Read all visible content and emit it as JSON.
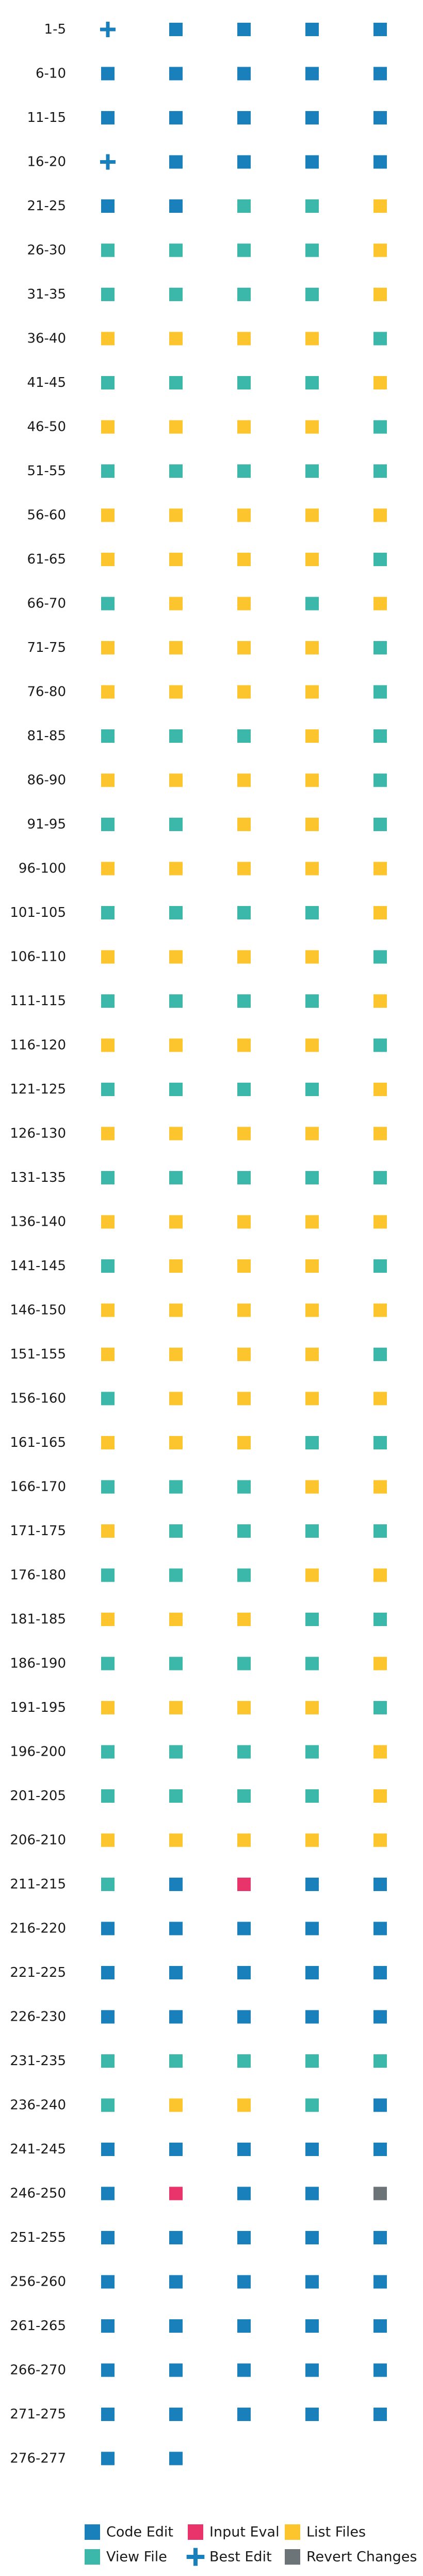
{
  "chart_data": {
    "type": "heatmap",
    "title": "",
    "xlabel": "",
    "ylabel": "",
    "grid": false,
    "legend_position": "bottom",
    "categories": {
      "CE": {
        "label": "Code Edit",
        "color": "#1a80bb",
        "marker": "square"
      },
      "VF": {
        "label": "View File",
        "color": "#3bb8a9",
        "marker": "square"
      },
      "IE": {
        "label": "Input Eval",
        "color": "#e8336b",
        "marker": "square"
      },
      "BE": {
        "label": "Best Edit",
        "color": "#1a80bb",
        "marker": "plus"
      },
      "LF": {
        "label": "List Files",
        "color": "#fcc42d",
        "marker": "square"
      },
      "RC": {
        "label": "Revert Changes",
        "color": "#6d7478",
        "marker": "square"
      }
    },
    "legend_order": [
      "CE",
      "VF",
      "IE",
      "BE",
      "LF",
      "RC"
    ],
    "rows": [
      {
        "label": "1-5",
        "cells": [
          "BE",
          "CE",
          "CE",
          "CE",
          "CE"
        ]
      },
      {
        "label": "6-10",
        "cells": [
          "CE",
          "CE",
          "CE",
          "CE",
          "CE"
        ]
      },
      {
        "label": "11-15",
        "cells": [
          "CE",
          "CE",
          "CE",
          "CE",
          "CE"
        ]
      },
      {
        "label": "16-20",
        "cells": [
          "BE",
          "CE",
          "CE",
          "CE",
          "CE"
        ]
      },
      {
        "label": "21-25",
        "cells": [
          "CE",
          "CE",
          "VF",
          "VF",
          "LF"
        ]
      },
      {
        "label": "26-30",
        "cells": [
          "VF",
          "VF",
          "VF",
          "VF",
          "LF"
        ]
      },
      {
        "label": "31-35",
        "cells": [
          "VF",
          "VF",
          "VF",
          "VF",
          "LF"
        ]
      },
      {
        "label": "36-40",
        "cells": [
          "LF",
          "LF",
          "LF",
          "LF",
          "VF"
        ]
      },
      {
        "label": "41-45",
        "cells": [
          "VF",
          "VF",
          "VF",
          "VF",
          "LF"
        ]
      },
      {
        "label": "46-50",
        "cells": [
          "LF",
          "LF",
          "LF",
          "LF",
          "VF"
        ]
      },
      {
        "label": "51-55",
        "cells": [
          "VF",
          "VF",
          "VF",
          "VF",
          "VF"
        ]
      },
      {
        "label": "56-60",
        "cells": [
          "LF",
          "LF",
          "LF",
          "LF",
          "LF"
        ]
      },
      {
        "label": "61-65",
        "cells": [
          "LF",
          "LF",
          "LF",
          "LF",
          "VF"
        ]
      },
      {
        "label": "66-70",
        "cells": [
          "VF",
          "LF",
          "LF",
          "VF",
          "LF"
        ]
      },
      {
        "label": "71-75",
        "cells": [
          "LF",
          "LF",
          "LF",
          "LF",
          "VF"
        ]
      },
      {
        "label": "76-80",
        "cells": [
          "LF",
          "LF",
          "LF",
          "LF",
          "VF"
        ]
      },
      {
        "label": "81-85",
        "cells": [
          "VF",
          "VF",
          "VF",
          "LF",
          "VF"
        ]
      },
      {
        "label": "86-90",
        "cells": [
          "LF",
          "LF",
          "LF",
          "LF",
          "VF"
        ]
      },
      {
        "label": "91-95",
        "cells": [
          "VF",
          "VF",
          "LF",
          "LF",
          "VF"
        ]
      },
      {
        "label": "96-100",
        "cells": [
          "LF",
          "LF",
          "LF",
          "LF",
          "LF"
        ]
      },
      {
        "label": "101-105",
        "cells": [
          "VF",
          "VF",
          "VF",
          "VF",
          "LF"
        ]
      },
      {
        "label": "106-110",
        "cells": [
          "LF",
          "LF",
          "LF",
          "LF",
          "VF"
        ]
      },
      {
        "label": "111-115",
        "cells": [
          "VF",
          "VF",
          "VF",
          "VF",
          "LF"
        ]
      },
      {
        "label": "116-120",
        "cells": [
          "LF",
          "LF",
          "LF",
          "LF",
          "VF"
        ]
      },
      {
        "label": "121-125",
        "cells": [
          "VF",
          "VF",
          "VF",
          "VF",
          "LF"
        ]
      },
      {
        "label": "126-130",
        "cells": [
          "LF",
          "LF",
          "LF",
          "LF",
          "LF"
        ]
      },
      {
        "label": "131-135",
        "cells": [
          "VF",
          "VF",
          "VF",
          "VF",
          "VF"
        ]
      },
      {
        "label": "136-140",
        "cells": [
          "LF",
          "LF",
          "LF",
          "LF",
          "LF"
        ]
      },
      {
        "label": "141-145",
        "cells": [
          "VF",
          "LF",
          "LF",
          "LF",
          "VF"
        ]
      },
      {
        "label": "146-150",
        "cells": [
          "LF",
          "LF",
          "LF",
          "LF",
          "LF"
        ]
      },
      {
        "label": "151-155",
        "cells": [
          "LF",
          "LF",
          "LF",
          "LF",
          "VF"
        ]
      },
      {
        "label": "156-160",
        "cells": [
          "VF",
          "LF",
          "LF",
          "LF",
          "LF"
        ]
      },
      {
        "label": "161-165",
        "cells": [
          "LF",
          "LF",
          "LF",
          "VF",
          "VF"
        ]
      },
      {
        "label": "166-170",
        "cells": [
          "VF",
          "VF",
          "VF",
          "LF",
          "LF"
        ]
      },
      {
        "label": "171-175",
        "cells": [
          "LF",
          "VF",
          "VF",
          "VF",
          "VF"
        ]
      },
      {
        "label": "176-180",
        "cells": [
          "VF",
          "VF",
          "VF",
          "LF",
          "LF"
        ]
      },
      {
        "label": "181-185",
        "cells": [
          "LF",
          "LF",
          "LF",
          "VF",
          "VF"
        ]
      },
      {
        "label": "186-190",
        "cells": [
          "VF",
          "VF",
          "VF",
          "VF",
          "LF"
        ]
      },
      {
        "label": "191-195",
        "cells": [
          "LF",
          "LF",
          "LF",
          "LF",
          "VF"
        ]
      },
      {
        "label": "196-200",
        "cells": [
          "VF",
          "VF",
          "VF",
          "VF",
          "LF"
        ]
      },
      {
        "label": "201-205",
        "cells": [
          "VF",
          "VF",
          "VF",
          "VF",
          "LF"
        ]
      },
      {
        "label": "206-210",
        "cells": [
          "LF",
          "LF",
          "LF",
          "LF",
          "LF"
        ]
      },
      {
        "label": "211-215",
        "cells": [
          "VF",
          "CE",
          "IE",
          "CE",
          "CE"
        ]
      },
      {
        "label": "216-220",
        "cells": [
          "CE",
          "CE",
          "CE",
          "CE",
          "CE"
        ]
      },
      {
        "label": "221-225",
        "cells": [
          "CE",
          "CE",
          "CE",
          "CE",
          "CE"
        ]
      },
      {
        "label": "226-230",
        "cells": [
          "CE",
          "CE",
          "CE",
          "CE",
          "CE"
        ]
      },
      {
        "label": "231-235",
        "cells": [
          "VF",
          "VF",
          "VF",
          "VF",
          "VF"
        ]
      },
      {
        "label": "236-240",
        "cells": [
          "VF",
          "LF",
          "LF",
          "VF",
          "CE"
        ]
      },
      {
        "label": "241-245",
        "cells": [
          "CE",
          "CE",
          "CE",
          "CE",
          "CE"
        ]
      },
      {
        "label": "246-250",
        "cells": [
          "CE",
          "IE",
          "CE",
          "CE",
          "RC"
        ]
      },
      {
        "label": "251-255",
        "cells": [
          "CE",
          "CE",
          "CE",
          "CE",
          "CE"
        ]
      },
      {
        "label": "256-260",
        "cells": [
          "CE",
          "CE",
          "CE",
          "CE",
          "CE"
        ]
      },
      {
        "label": "261-265",
        "cells": [
          "CE",
          "CE",
          "CE",
          "CE",
          "CE"
        ]
      },
      {
        "label": "266-270",
        "cells": [
          "CE",
          "CE",
          "CE",
          "CE",
          "CE"
        ]
      },
      {
        "label": "271-275",
        "cells": [
          "CE",
          "CE",
          "CE",
          "CE",
          "CE"
        ]
      },
      {
        "label": "276-277",
        "cells": [
          "CE",
          "CE"
        ]
      }
    ]
  }
}
